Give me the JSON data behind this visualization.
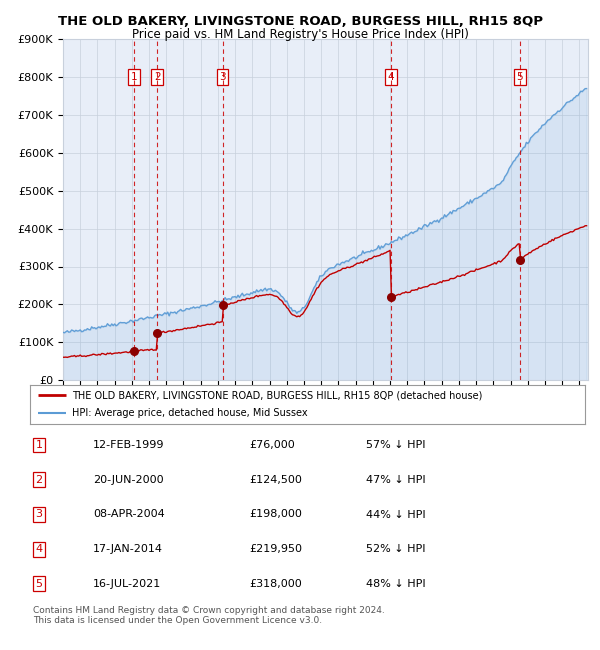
{
  "title": "THE OLD BAKERY, LIVINGSTONE ROAD, BURGESS HILL, RH15 8QP",
  "subtitle": "Price paid vs. HM Land Registry's House Price Index (HPI)",
  "plot_bg_color": "#e8eef8",
  "ylim": [
    0,
    900000
  ],
  "yticks": [
    0,
    100000,
    200000,
    300000,
    400000,
    500000,
    600000,
    700000,
    800000,
    900000
  ],
  "ytick_labels": [
    "£0",
    "£100K",
    "£200K",
    "£300K",
    "£400K",
    "£500K",
    "£600K",
    "£700K",
    "£800K",
    "£900K"
  ],
  "xlim_start": 1995.0,
  "xlim_end": 2025.5,
  "hpi_color": "#5b9bd5",
  "price_color": "#c00000",
  "sale_marker_color": "#8b0000",
  "vline_color": "#cc0000",
  "grid_color": "#c8d0dc",
  "sale_dates_decimal": [
    1999.11,
    2000.47,
    2004.27,
    2014.04,
    2021.54
  ],
  "sale_prices": [
    76000,
    124500,
    198000,
    219950,
    318000
  ],
  "sale_labels": [
    "1",
    "2",
    "3",
    "4",
    "5"
  ],
  "sale_table": [
    [
      "1",
      "12-FEB-1999",
      "£76,000",
      "57% ↓ HPI"
    ],
    [
      "2",
      "20-JUN-2000",
      "£124,500",
      "47% ↓ HPI"
    ],
    [
      "3",
      "08-APR-2004",
      "£198,000",
      "44% ↓ HPI"
    ],
    [
      "4",
      "17-JAN-2014",
      "£219,950",
      "52% ↓ HPI"
    ],
    [
      "5",
      "16-JUL-2021",
      "£318,000",
      "48% ↓ HPI"
    ]
  ],
  "legend_line1": "THE OLD BAKERY, LIVINGSTONE ROAD, BURGESS HILL, RH15 8QP (detached house)",
  "legend_line2": "HPI: Average price, detached house, Mid Sussex",
  "footer": "Contains HM Land Registry data © Crown copyright and database right 2024.\nThis data is licensed under the Open Government Licence v3.0."
}
